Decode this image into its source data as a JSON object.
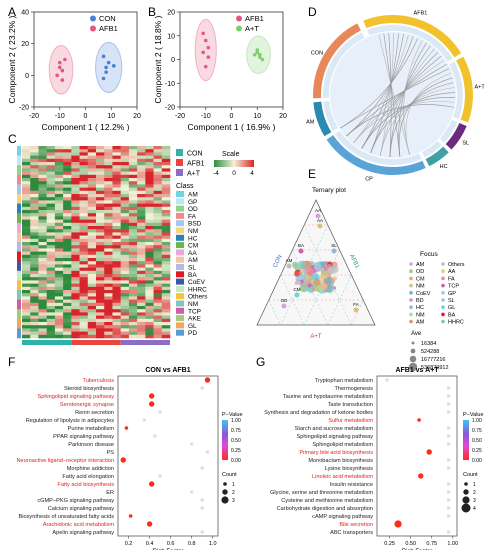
{
  "panels": {
    "A": "A",
    "B": "B",
    "C": "C",
    "D": "D",
    "E": "E",
    "F": "F",
    "G": "G"
  },
  "colors": {
    "con": "#4a7fd6",
    "afb1": "#e6557d",
    "at": "#7ecf6b",
    "red_label": "#e0201b"
  },
  "chart_data": [
    {
      "id": "A",
      "type": "scatter",
      "xlabel": "Component 1 ( 12.2% )",
      "ylabel": "Component 2 ( 23.2% )",
      "xticks": [
        "-20",
        "-10",
        "0",
        "10",
        "20"
      ],
      "yticks": [
        "-20",
        "0",
        "20",
        "40"
      ],
      "xlim": [
        -20,
        20
      ],
      "ylim": [
        -20,
        40
      ],
      "series": [
        {
          "name": "CON",
          "color": "#4a7fd6",
          "points": [
            [
              7,
              12
            ],
            [
              8,
              2
            ],
            [
              9,
              8
            ],
            [
              7,
              -2
            ],
            [
              11,
              6
            ],
            [
              8,
              5
            ]
          ]
        },
        {
          "name": "AFB1",
          "color": "#e6557d",
          "points": [
            [
              -10,
              8
            ],
            [
              -9,
              3
            ],
            [
              -11,
              0
            ],
            [
              -8,
              10
            ],
            [
              -10,
              5
            ],
            [
              -9,
              -3
            ]
          ]
        }
      ]
    },
    {
      "id": "B",
      "type": "scatter",
      "xlabel": "Component 1 ( 16.9% )",
      "ylabel": "Component 2 ( 18.8% )",
      "xticks": [
        "-20",
        "-10",
        "0",
        "10",
        "20"
      ],
      "yticks": [
        "-20",
        "-10",
        "0",
        "10",
        "20"
      ],
      "xlim": [
        -20,
        20
      ],
      "ylim": [
        -20,
        20
      ],
      "series": [
        {
          "name": "AFB1",
          "color": "#e6557d",
          "points": [
            [
              -10,
              8
            ],
            [
              -11,
              3
            ],
            [
              -9,
              1
            ],
            [
              -10,
              -3
            ],
            [
              -9,
              5
            ],
            [
              -11,
              11
            ]
          ]
        },
        {
          "name": "A+T",
          "color": "#7ecf6b",
          "points": [
            [
              10,
              3
            ],
            [
              11,
              1
            ],
            [
              9,
              2
            ],
            [
              12,
              0
            ],
            [
              10,
              4
            ],
            [
              11,
              2
            ]
          ]
        }
      ]
    },
    {
      "id": "C",
      "type": "heatmap",
      "legend_groups": [
        "CON",
        "AFB1",
        "A+T"
      ],
      "group_colors": [
        "#2db3a7",
        "#e8463c",
        "#8a6ec4"
      ],
      "scale_title": "Scale",
      "scale_ticks": [
        "-4",
        "0",
        "4"
      ],
      "class_title": "Class",
      "classes": [
        {
          "name": "AM",
          "color": "#6fd4e0"
        },
        {
          "name": "GP",
          "color": "#c2e6f0"
        },
        {
          "name": "OD",
          "color": "#8fd38f"
        },
        {
          "name": "FA",
          "color": "#f18a8a"
        },
        {
          "name": "BSD",
          "color": "#9ec9ea"
        },
        {
          "name": "NM",
          "color": "#f9d27b"
        },
        {
          "name": "HC",
          "color": "#2a7fbf"
        },
        {
          "name": "CM",
          "color": "#6ab64c"
        },
        {
          "name": "AA",
          "color": "#e9a9d8"
        },
        {
          "name": "AM",
          "color": "#f3c6a0"
        },
        {
          "name": "SL",
          "color": "#b9b6e8"
        },
        {
          "name": "BA",
          "color": "#e31a1c"
        },
        {
          "name": "CoEV",
          "color": "#3d56a8"
        },
        {
          "name": "HHRC",
          "color": "#c7e9c0"
        },
        {
          "name": "Others",
          "color": "#f5c242"
        },
        {
          "name": "NM",
          "color": "#7fc7b6"
        },
        {
          "name": "TCP",
          "color": "#cf5ca5"
        },
        {
          "name": "AKE",
          "color": "#a5c97a"
        },
        {
          "name": "GL",
          "color": "#f4a461"
        },
        {
          "name": "PD",
          "color": "#5a9bd4"
        }
      ]
    },
    {
      "id": "D",
      "type": "chord",
      "segments": [
        "AFB1",
        "A+T",
        "SL",
        "HC",
        "CP",
        "AM",
        "CON"
      ]
    },
    {
      "id": "E",
      "type": "ternary",
      "title": "Ternary plot",
      "axes": [
        "CON",
        "AFB1",
        "A+T"
      ],
      "ticks": [
        "20",
        "40",
        "60",
        "80"
      ],
      "point_labels": [
        "AA",
        "AA",
        "SL",
        "AM",
        "BA",
        "CM",
        "OD",
        "FA"
      ],
      "focus_title": "Focus",
      "focus_left": [
        {
          "name": "AM",
          "color": "#d0a6d6"
        },
        {
          "name": "OD",
          "color": "#a5c97a"
        },
        {
          "name": "CM",
          "color": "#f4a461"
        },
        {
          "name": "NM",
          "color": "#d6c07a"
        },
        {
          "name": "CoEV",
          "color": "#6ab0d8"
        },
        {
          "name": "BD",
          "color": "#e58fb1"
        },
        {
          "name": "HC",
          "color": "#8fbbd9"
        },
        {
          "name": "NM",
          "color": "#b6d99b"
        },
        {
          "name": "AM",
          "color": "#e88e6f"
        }
      ],
      "focus_right": [
        {
          "name": "Others",
          "color": "#bdbdbd"
        },
        {
          "name": "AA",
          "color": "#e8c77a"
        },
        {
          "name": "FA",
          "color": "#f18a8a"
        },
        {
          "name": "TCP",
          "color": "#cf5ca5"
        },
        {
          "name": "GP",
          "color": "#9ec9ea"
        },
        {
          "name": "SL",
          "color": "#b9b6e8"
        },
        {
          "name": "GL",
          "color": "#6fd4e0"
        },
        {
          "name": "BA",
          "color": "#e31a1c"
        },
        {
          "name": "HHRC",
          "color": "#7fc7b6"
        }
      ],
      "size_title": "Ave",
      "size_values": [
        "16384",
        "524288",
        "16777216",
        "536870912"
      ]
    },
    {
      "id": "F",
      "type": "scatter",
      "title": "CON vs AFB1",
      "xlabel": "Rich Factor",
      "xticks": [
        "0.2",
        "0.4",
        "0.6",
        "0.8",
        "1.0"
      ],
      "xlim": [
        0.1,
        1.05
      ],
      "categories": [
        "Tuberculosis",
        "Steroid biosynthesis",
        "Sphingolipid signaling pathway",
        "Serotonergic synapse",
        "Renin secretion",
        "Regulation of lipolysis in adipocytes",
        "Purine metabolism",
        "PPAR signaling pathway",
        "Parkinson disease",
        "PS",
        "Neuroactive ligand−receptor interaction",
        "Morphine addiction",
        "Fatty acid elongation",
        "Fatty acid biosynthesis",
        "ER",
        "cGMP−PKG signaling pathway",
        "Calcium signaling pathway",
        "Biosynthesis of unsaturated fatty acids",
        "Arachidonic acid metabolism",
        "Apelin signaling pathway"
      ],
      "highlighted": [
        0,
        2,
        3,
        10,
        13,
        18
      ],
      "values": [
        0.95,
        0.9,
        0.42,
        0.42,
        0.5,
        0.35,
        0.18,
        0.45,
        0.8,
        0.95,
        0.15,
        0.9,
        0.5,
        0.42,
        0.8,
        0.9,
        0.9,
        0.22,
        0.4,
        0.9
      ],
      "pvalue": [
        0.02,
        0.9,
        0.02,
        0.05,
        0.9,
        0.9,
        0.02,
        0.9,
        0.9,
        0.9,
        0.02,
        0.9,
        0.9,
        0.02,
        0.9,
        0.9,
        0.9,
        0.05,
        0.02,
        0.9
      ],
      "count": [
        2,
        1,
        2,
        2,
        1,
        1,
        1,
        1,
        1,
        1,
        2,
        1,
        1,
        2,
        1,
        1,
        1,
        1,
        2,
        1
      ],
      "colorbar_title": "P−Value",
      "colorbar_ticks": [
        "1.00",
        "0.75",
        "0.50",
        "0.25",
        "0.00"
      ],
      "size_title": "Count",
      "size_ticks": [
        "1",
        "2",
        "3"
      ]
    },
    {
      "id": "G",
      "type": "scatter",
      "title": "AFB1 vs A+T",
      "xlabel": "Rich Factor",
      "xticks": [
        "0.25",
        "0.50",
        "0.75",
        "1.00"
      ],
      "xlim": [
        0.1,
        1.05
      ],
      "categories": [
        "Tryptophan metabolism",
        "Thermogenesis",
        "Taurine and hypotaurine metabolism",
        "Taste transduction",
        "Synthesis and degradation of ketone bodies",
        "Sulfur metabolism",
        "Starch and sucrose metabolism",
        "Sphingolipid signaling pathway",
        "Sphingolipid metabolism",
        "Primary bile acid biosynthesis",
        "Monobactam biosynthesis",
        "Lysine biosynthesis",
        "Linoleic acid metabolism",
        "Insulin resistance",
        "Glycine, serine and threonine metabolism",
        "Cysteine and methionine metabolism",
        "Carbohydrate digestion and absorption",
        "cAMP signaling pathway",
        "Bile secretion",
        "ABC transporters"
      ],
      "highlighted": [
        5,
        9,
        12,
        18
      ],
      "values": [
        0.22,
        0.95,
        0.95,
        0.95,
        0.95,
        0.6,
        0.95,
        0.95,
        0.95,
        0.72,
        0.95,
        0.95,
        0.62,
        0.95,
        0.95,
        0.95,
        0.95,
        0.95,
        0.35,
        0.95
      ],
      "pvalue": [
        0.9,
        0.9,
        0.9,
        0.9,
        0.9,
        0.02,
        0.9,
        0.9,
        0.9,
        0.02,
        0.9,
        0.9,
        0.02,
        0.9,
        0.9,
        0.9,
        0.9,
        0.9,
        0.05,
        0.9
      ],
      "count": [
        1,
        1,
        1,
        1,
        1,
        1,
        1,
        1,
        1,
        2,
        1,
        1,
        2,
        1,
        1,
        1,
        1,
        1,
        3,
        1
      ],
      "colorbar_title": "P−Value",
      "colorbar_ticks": [
        "1.00",
        "0.75",
        "0.50",
        "0.25",
        "0.00"
      ],
      "size_title": "Count",
      "size_ticks": [
        "1",
        "2",
        "3",
        "4"
      ]
    }
  ]
}
